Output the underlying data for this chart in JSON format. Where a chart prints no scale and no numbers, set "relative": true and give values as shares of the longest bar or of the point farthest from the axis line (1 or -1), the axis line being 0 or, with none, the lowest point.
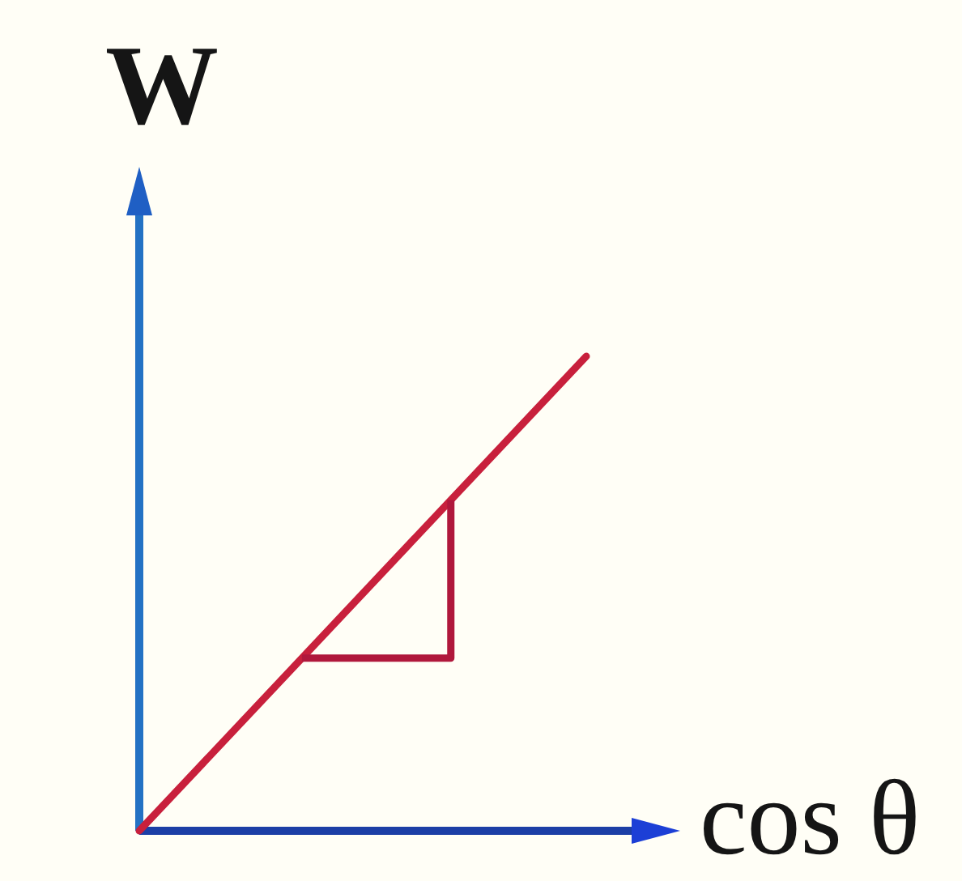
{
  "chart_data": {
    "type": "line",
    "xlabel": "cos θ",
    "ylabel": "W",
    "categories": [
      null,
      null
    ],
    "values": [
      0,
      1
    ],
    "color": "#c8203c",
    "relative": true
  }
}
